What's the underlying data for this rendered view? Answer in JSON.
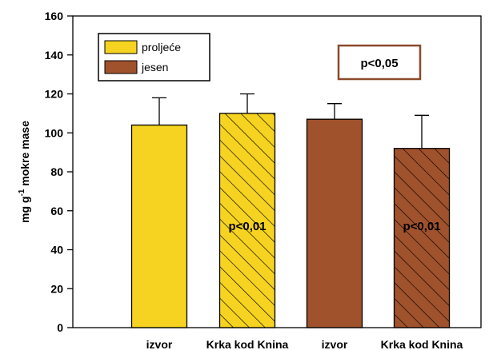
{
  "chart_data": {
    "type": "bar",
    "categories": [
      "izvor",
      "Krka kod Knina",
      "izvor",
      "Krka kod Knina"
    ],
    "values": [
      104,
      110,
      107,
      92
    ],
    "errors": [
      14,
      10,
      8,
      17
    ],
    "season_index": [
      0,
      0,
      1,
      1
    ],
    "hatched": [
      false,
      true,
      false,
      true
    ],
    "series": [
      {
        "name": "proljeće",
        "color": "#f5d320"
      },
      {
        "name": "jesen",
        "color": "#a0522d"
      }
    ],
    "ylabel_prefix": "mg g",
    "ylabel_sup": "-1",
    "ylabel_suffix": " mokre mase",
    "ylim": [
      0,
      160
    ],
    "yticks": [
      0,
      20,
      40,
      60,
      80,
      100,
      120,
      140,
      160
    ],
    "legend_position": "top-left",
    "significance_box": "p<0,05",
    "bar_annotations": [
      "",
      "p<0,01",
      "",
      "p<0,01"
    ]
  }
}
